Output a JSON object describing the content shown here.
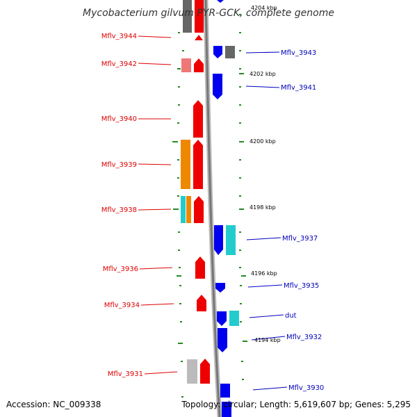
{
  "title": "Mycobacterium gilvum PYR-GCK, complete genome",
  "accession": "Accession: NC_009338",
  "topology": "Topology: circular; Length: 5,619,607 bp; Genes: 5,295",
  "colors": {
    "left_label": "#dd0000",
    "right_label": "#0000bb",
    "tick": "#228B22",
    "backbone": "#888888"
  },
  "kbp_labels": [
    "4204 kbp",
    "4202 kbp",
    "4200 kbp",
    "4198 kbp",
    "4196 kbp",
    "4194 kbp"
  ],
  "left_genes": [
    "Mflv_3944",
    "Mflv_3942",
    "Mflv_3940",
    "Mflv_3939",
    "Mflv_3938",
    "Mflv_3936",
    "Mflv_3934",
    "Mflv_3931"
  ],
  "right_genes": [
    "Mflv_3943",
    "Mflv_3941",
    "Mflv_3937",
    "Mflv_3935",
    "dut",
    "Mflv_3932",
    "Mflv_3930"
  ]
}
